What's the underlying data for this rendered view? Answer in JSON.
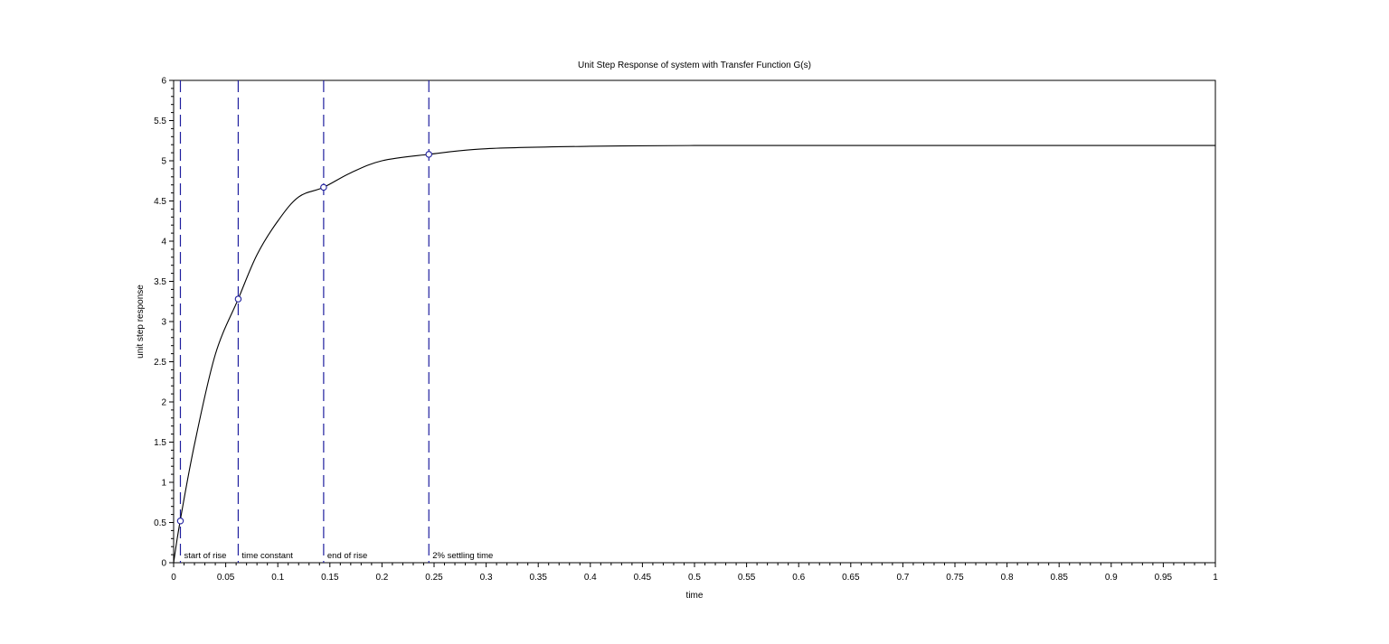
{
  "chart_data": {
    "type": "line",
    "title": "Unit Step Response of system with Transfer Function G(s)",
    "xlabel": "time",
    "ylabel": "unit step response",
    "xlim": [
      0,
      1
    ],
    "ylim": [
      0,
      6
    ],
    "xticks": [
      "0",
      "0.05",
      "0.1",
      "0.15",
      "0.2",
      "0.25",
      "0.3",
      "0.35",
      "0.4",
      "0.45",
      "0.5",
      "0.55",
      "0.6",
      "0.65",
      "0.7",
      "0.75",
      "0.8",
      "0.85",
      "0.9",
      "0.95",
      "1"
    ],
    "yticks": [
      "0",
      "0.5",
      "1",
      "1.5",
      "2",
      "2.5",
      "3",
      "3.5",
      "4",
      "4.5",
      "5",
      "5.5",
      "6"
    ],
    "grid": false,
    "series": [
      {
        "color": "#000000",
        "x": [
          0,
          0.006,
          0.02,
          0.04,
          0.062,
          0.08,
          0.1,
          0.12,
          0.144,
          0.17,
          0.2,
          0.245,
          0.3,
          0.4,
          0.5,
          0.7,
          1.0
        ],
        "y": [
          0,
          0.5,
          1.47,
          2.59,
          3.28,
          3.83,
          4.25,
          4.55,
          4.67,
          4.85,
          5.0,
          5.08,
          5.15,
          5.18,
          5.19,
          5.19,
          5.19
        ]
      }
    ],
    "markers": [
      {
        "x": 0.0065,
        "y": 0.52,
        "label": "start of rise"
      },
      {
        "x": 0.062,
        "y": 3.28,
        "label": "time constant"
      },
      {
        "x": 0.144,
        "y": 4.67,
        "label": "end of rise"
      },
      {
        "x": 0.245,
        "y": 5.08,
        "label": "2% settling time"
      }
    ],
    "marker_color": "#1f1f9e",
    "line_color": "#000000"
  }
}
